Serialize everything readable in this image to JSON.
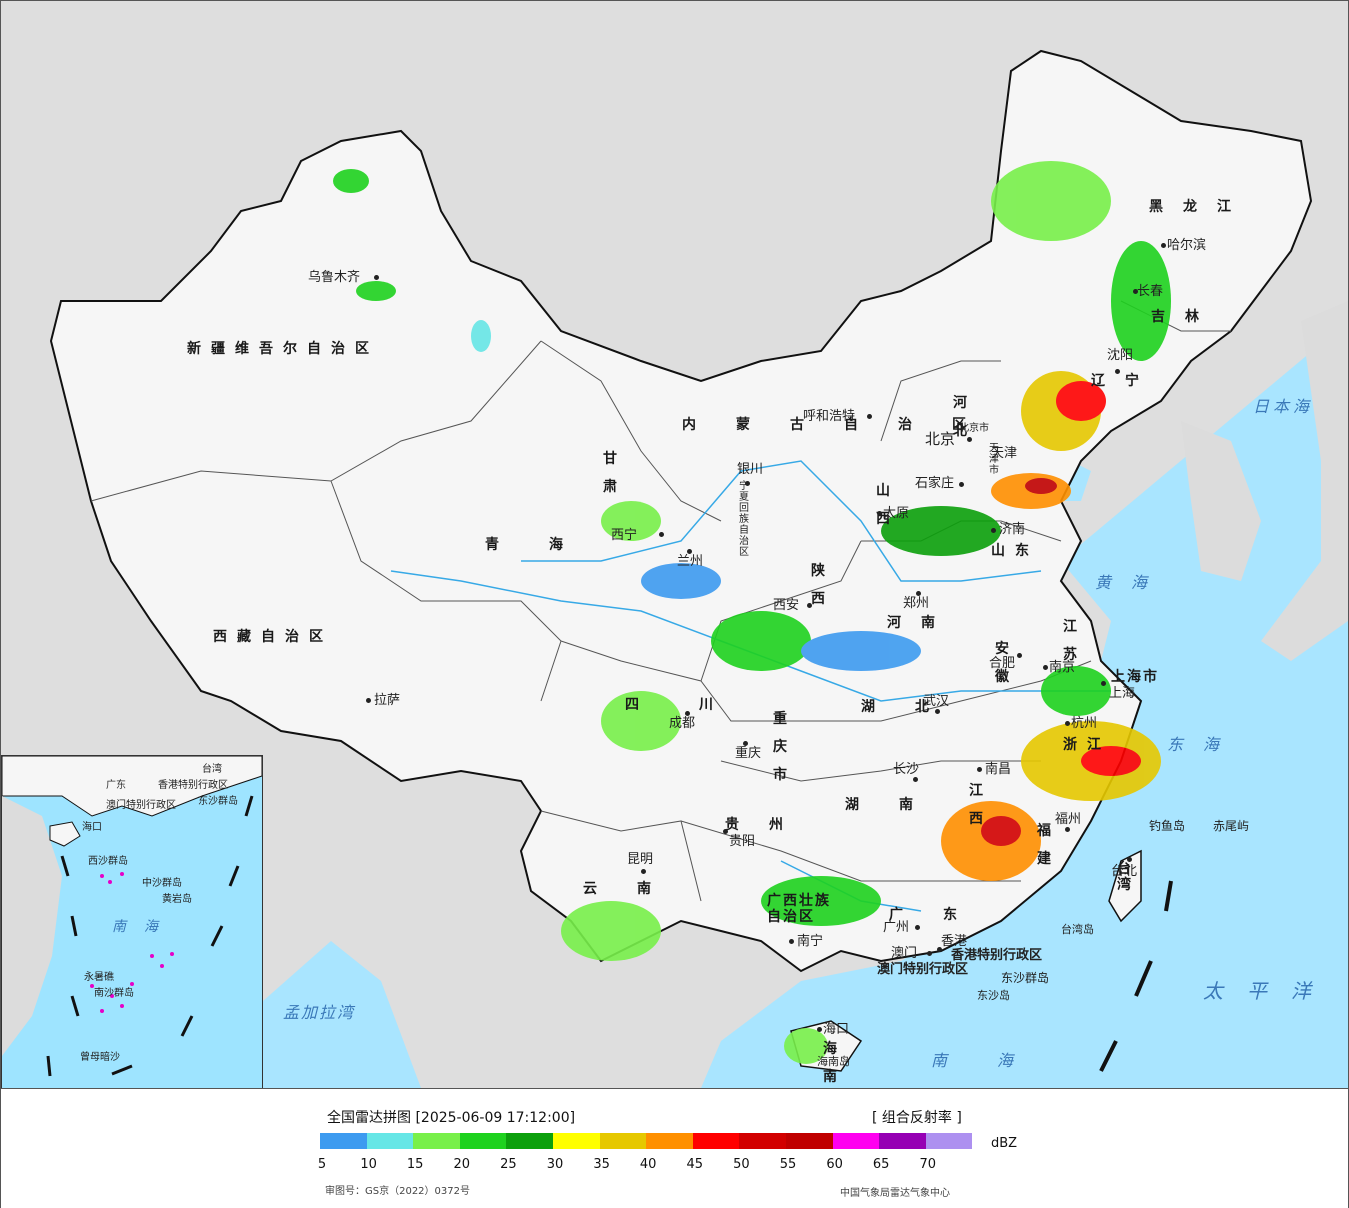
{
  "title": "全国雷达拼图 [2025-06-09 17:12:00]",
  "product": "[ 组合反射率 ]",
  "unit": "dBZ",
  "approval_number": "审图号：GS京（2022）0372号",
  "agency": "中国气象局雷达气象中心",
  "legend": {
    "colors": [
      "#3d9bf0",
      "#66e6e6",
      "#78f04a",
      "#1ed21e",
      "#0ca00c",
      "#ffff00",
      "#e6c800",
      "#ff9000",
      "#ff0000",
      "#d20000",
      "#c00000",
      "#ff00f0",
      "#9600b4",
      "#ad90f0"
    ],
    "ticks": [
      "5",
      "10",
      "15",
      "20",
      "25",
      "30",
      "35",
      "40",
      "45",
      "50",
      "55",
      "60",
      "65",
      "70"
    ]
  },
  "cities": [
    {
      "name": "乌鲁木齐"
    },
    {
      "name": "拉萨"
    },
    {
      "name": "西宁"
    },
    {
      "name": "兰州"
    },
    {
      "name": "银川"
    },
    {
      "name": "呼和浩特"
    },
    {
      "name": "北京"
    },
    {
      "name": "天津"
    },
    {
      "name": "石家庄"
    },
    {
      "name": "太原"
    },
    {
      "name": "济南"
    },
    {
      "name": "郑州"
    },
    {
      "name": "西安"
    },
    {
      "name": "成都"
    },
    {
      "name": "重庆"
    },
    {
      "name": "武汉"
    },
    {
      "name": "合肥"
    },
    {
      "name": "南京"
    },
    {
      "name": "上海"
    },
    {
      "name": "杭州"
    },
    {
      "name": "南昌"
    },
    {
      "name": "长沙"
    },
    {
      "name": "贵阳"
    },
    {
      "name": "昆明"
    },
    {
      "name": "南宁"
    },
    {
      "name": "广州"
    },
    {
      "name": "澳门"
    },
    {
      "name": "香港"
    },
    {
      "name": "福州"
    },
    {
      "name": "台北"
    },
    {
      "name": "海口"
    },
    {
      "name": "沈阳"
    },
    {
      "name": "长春"
    },
    {
      "name": "哈尔滨"
    }
  ],
  "provinces": [
    {
      "name": "新疆维吾尔自治区"
    },
    {
      "name": "西藏自治区"
    },
    {
      "name": "青海"
    },
    {
      "name": "甘肃"
    },
    {
      "name": "内蒙古自治区"
    },
    {
      "name": "黑龙江"
    },
    {
      "name": "吉林"
    },
    {
      "name": "辽宁"
    },
    {
      "name": "河北"
    },
    {
      "name": "山西"
    },
    {
      "name": "山东"
    },
    {
      "name": "河南"
    },
    {
      "name": "陕西"
    },
    {
      "name": "四川"
    },
    {
      "name": "重庆市"
    },
    {
      "name": "湖北"
    },
    {
      "name": "湖南"
    },
    {
      "name": "贵州"
    },
    {
      "name": "云南"
    },
    {
      "name": "广西壮族自治区"
    },
    {
      "name": "广东"
    },
    {
      "name": "江西"
    },
    {
      "name": "福建"
    },
    {
      "name": "浙江"
    },
    {
      "name": "江苏"
    },
    {
      "name": "安徽"
    },
    {
      "name": "上海市"
    },
    {
      "name": "海南"
    },
    {
      "name": "台湾"
    },
    {
      "name": "宁夏回族自治区"
    },
    {
      "name": "天津市"
    },
    {
      "name": "北京市"
    },
    {
      "name": "香港特别行政区"
    },
    {
      "name": "澳门特别行政区"
    }
  ],
  "seas": [
    {
      "name": "日本海"
    },
    {
      "name": "黄海"
    },
    {
      "name": "东海"
    },
    {
      "name": "太平洋"
    },
    {
      "name": "南海"
    },
    {
      "name": "孟加拉湾"
    }
  ],
  "islands": [
    {
      "name": "钓鱼岛"
    },
    {
      "name": "赤尾屿"
    },
    {
      "name": "台湾岛"
    },
    {
      "name": "东沙群岛"
    },
    {
      "name": "东沙岛"
    },
    {
      "name": "海南岛"
    }
  ],
  "inset": {
    "labels": [
      "南海",
      "中沙群岛",
      "黄岩岛",
      "西沙群岛",
      "永暑礁",
      "南沙群岛",
      "曾母暗沙",
      "海口",
      "香港特别行政区",
      "澳门特别行政区",
      "东沙群岛",
      "台湾",
      "广东"
    ]
  }
}
